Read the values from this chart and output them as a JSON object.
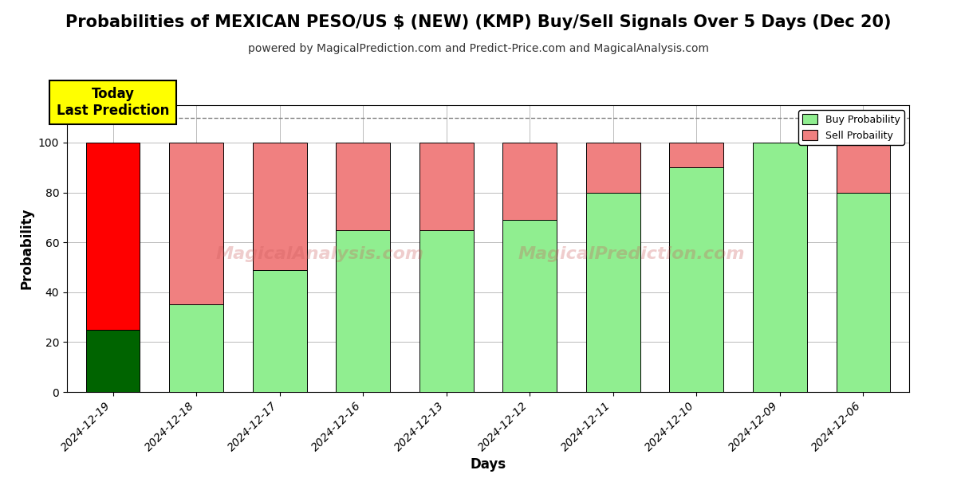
{
  "title": "Probabilities of MEXICAN PESO/US $ (NEW) (KMP) Buy/Sell Signals Over 5 Days (Dec 20)",
  "subtitle": "powered by MagicalPrediction.com and Predict-Price.com and MagicalAnalysis.com",
  "xlabel": "Days",
  "ylabel": "Probability",
  "dates": [
    "2024-12-19",
    "2024-12-18",
    "2024-12-17",
    "2024-12-16",
    "2024-12-13",
    "2024-12-12",
    "2024-12-11",
    "2024-12-10",
    "2024-12-09",
    "2024-12-06"
  ],
  "buy_values": [
    25,
    35,
    49,
    65,
    65,
    69,
    80,
    90,
    100,
    80
  ],
  "sell_values": [
    75,
    65,
    51,
    35,
    35,
    31,
    20,
    10,
    0,
    20
  ],
  "first_bar_buy_color": "#006400",
  "first_bar_sell_color": "#FF0000",
  "buy_color": "#90EE90",
  "sell_color": "#F08080",
  "today_box_color": "#FFFF00",
  "today_text": "Today\nLast Prediction",
  "ylim": [
    0,
    115
  ],
  "yticks": [
    0,
    20,
    40,
    60,
    80,
    100
  ],
  "dashed_line_y": 110,
  "legend_buy_label": "Buy Probability",
  "legend_sell_label": "Sell Probaility",
  "background_color": "#ffffff",
  "grid_color": "#bbbbbb",
  "title_fontsize": 15,
  "subtitle_fontsize": 10,
  "axis_label_fontsize": 12,
  "tick_fontsize": 10,
  "bar_width": 0.65
}
